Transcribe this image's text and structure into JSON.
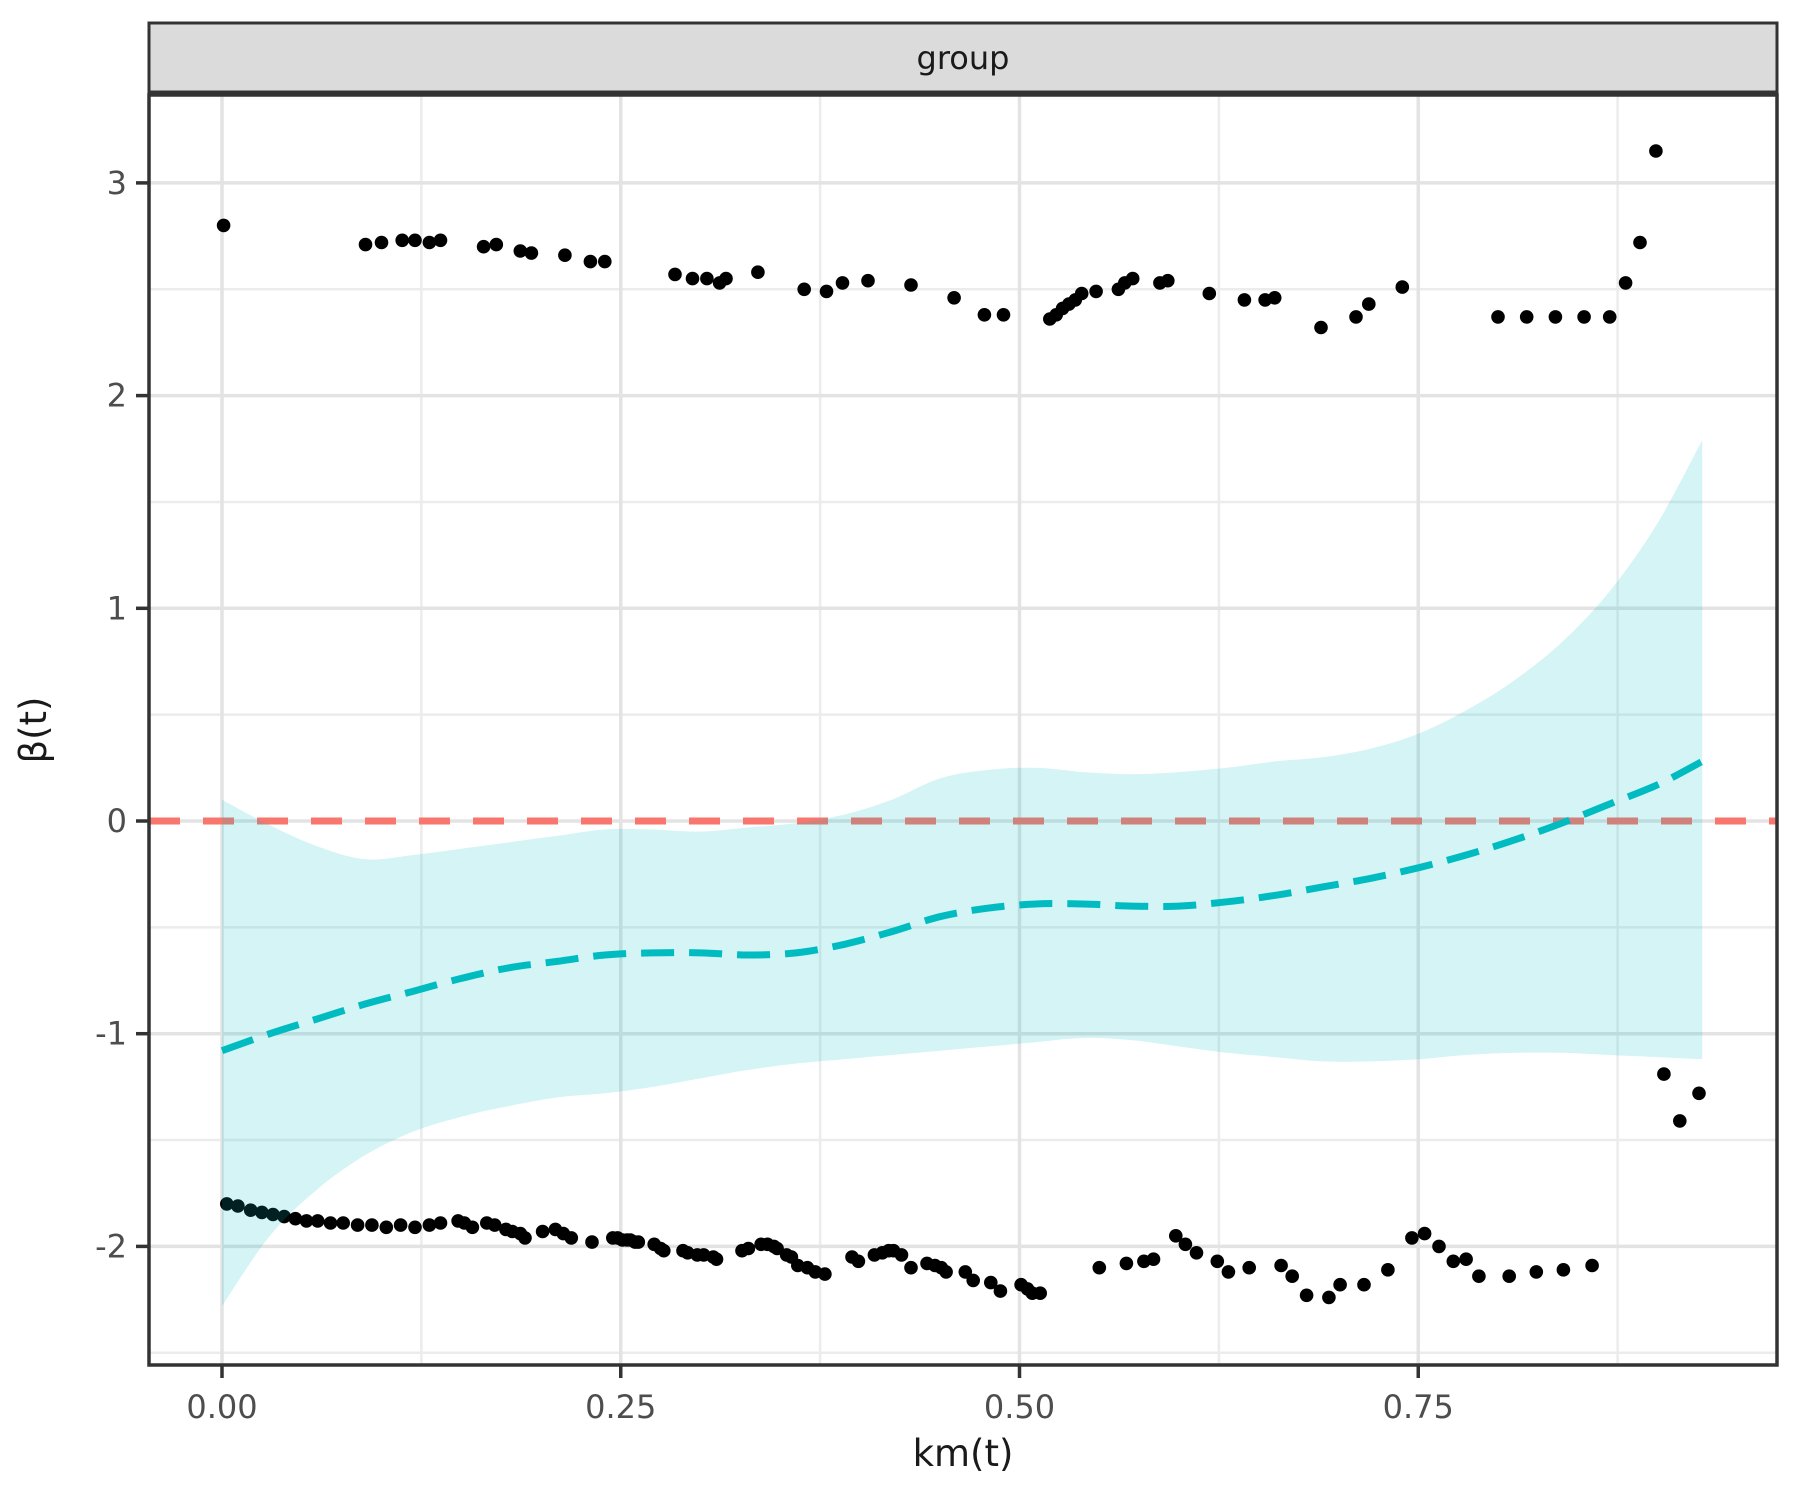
{
  "facet": {
    "label": "group"
  },
  "axes": {
    "x": {
      "title": "km(t)",
      "ticks": [
        {
          "value": 0.0,
          "label": "0.00"
        },
        {
          "value": 0.25,
          "label": "0.25"
        },
        {
          "value": 0.5,
          "label": "0.50"
        },
        {
          "value": 0.75,
          "label": "0.75"
        }
      ],
      "minor_ticks": [
        0.125,
        0.375,
        0.625,
        0.875
      ]
    },
    "y": {
      "title": "β(t)",
      "ticks": [
        {
          "value": 3,
          "label": "3"
        },
        {
          "value": 2,
          "label": "2"
        },
        {
          "value": 1,
          "label": "1"
        },
        {
          "value": 0,
          "label": "0"
        },
        {
          "value": -1,
          "label": "-1"
        },
        {
          "value": -2,
          "label": "-2"
        }
      ],
      "minor_ticks": [
        2.5,
        1.5,
        0.5,
        -0.5,
        -1.5,
        -2.5
      ]
    }
  },
  "colors": {
    "reference_line": "#F8766D",
    "smooth_line": "#00BCC1",
    "ribbon_fill": "rgba(0,188,193,0.17)",
    "point": "#000000",
    "grid_major": "#E3E3E3",
    "grid_minor": "#ECECEC",
    "panel_border": "#333333",
    "strip_fill": "#DBDBDB",
    "tick_text": "#4D4D4D",
    "axis_title_text": "#1A1A1A"
  },
  "chart_data": {
    "type": "scatter",
    "title": "group",
    "xlabel": "km(t)",
    "ylabel": "β(t)",
    "xlim": [
      -0.046,
      0.975
    ],
    "ylim": [
      -2.56,
      3.41
    ],
    "grid": "on",
    "legend": "none",
    "reference_line": {
      "y": 0,
      "style": "dashed"
    },
    "points": [
      [
        0.001,
        2.8
      ],
      [
        0.09,
        2.71
      ],
      [
        0.1,
        2.72
      ],
      [
        0.113,
        2.73
      ],
      [
        0.121,
        2.73
      ],
      [
        0.13,
        2.72
      ],
      [
        0.137,
        2.73
      ],
      [
        0.164,
        2.7
      ],
      [
        0.172,
        2.71
      ],
      [
        0.187,
        2.68
      ],
      [
        0.194,
        2.67
      ],
      [
        0.215,
        2.66
      ],
      [
        0.231,
        2.63
      ],
      [
        0.24,
        2.63
      ],
      [
        0.284,
        2.57
      ],
      [
        0.295,
        2.55
      ],
      [
        0.304,
        2.55
      ],
      [
        0.312,
        2.53
      ],
      [
        0.316,
        2.55
      ],
      [
        0.336,
        2.58
      ],
      [
        0.365,
        2.5
      ],
      [
        0.379,
        2.49
      ],
      [
        0.389,
        2.53
      ],
      [
        0.405,
        2.54
      ],
      [
        0.432,
        2.52
      ],
      [
        0.459,
        2.46
      ],
      [
        0.478,
        2.38
      ],
      [
        0.49,
        2.38
      ],
      [
        0.519,
        2.36
      ],
      [
        0.523,
        2.38
      ],
      [
        0.527,
        2.41
      ],
      [
        0.531,
        2.43
      ],
      [
        0.535,
        2.45
      ],
      [
        0.539,
        2.48
      ],
      [
        0.548,
        2.49
      ],
      [
        0.562,
        2.5
      ],
      [
        0.566,
        2.53
      ],
      [
        0.571,
        2.55
      ],
      [
        0.588,
        2.53
      ],
      [
        0.593,
        2.54
      ],
      [
        0.619,
        2.48
      ],
      [
        0.641,
        2.45
      ],
      [
        0.654,
        2.45
      ],
      [
        0.66,
        2.46
      ],
      [
        0.689,
        2.32
      ],
      [
        0.711,
        2.37
      ],
      [
        0.719,
        2.43
      ],
      [
        0.74,
        2.51
      ],
      [
        0.8,
        2.37
      ],
      [
        0.818,
        2.37
      ],
      [
        0.836,
        2.37
      ],
      [
        0.854,
        2.37
      ],
      [
        0.87,
        2.37
      ],
      [
        0.88,
        2.53
      ],
      [
        0.889,
        2.72
      ],
      [
        0.899,
        3.15
      ],
      [
        0.003,
        -1.8
      ],
      [
        0.01,
        -1.81
      ],
      [
        0.018,
        -1.83
      ],
      [
        0.025,
        -1.84
      ],
      [
        0.032,
        -1.85
      ],
      [
        0.039,
        -1.86
      ],
      [
        0.046,
        -1.87
      ],
      [
        0.053,
        -1.88
      ],
      [
        0.06,
        -1.88
      ],
      [
        0.068,
        -1.89
      ],
      [
        0.076,
        -1.89
      ],
      [
        0.085,
        -1.9
      ],
      [
        0.094,
        -1.9
      ],
      [
        0.103,
        -1.91
      ],
      [
        0.112,
        -1.9
      ],
      [
        0.121,
        -1.91
      ],
      [
        0.13,
        -1.9
      ],
      [
        0.137,
        -1.89
      ],
      [
        0.148,
        -1.88
      ],
      [
        0.152,
        -1.89
      ],
      [
        0.157,
        -1.91
      ],
      [
        0.166,
        -1.89
      ],
      [
        0.171,
        -1.9
      ],
      [
        0.178,
        -1.92
      ],
      [
        0.182,
        -1.93
      ],
      [
        0.187,
        -1.94
      ],
      [
        0.19,
        -1.96
      ],
      [
        0.201,
        -1.93
      ],
      [
        0.209,
        -1.92
      ],
      [
        0.214,
        -1.94
      ],
      [
        0.219,
        -1.96
      ],
      [
        0.232,
        -1.98
      ],
      [
        0.245,
        -1.96
      ],
      [
        0.248,
        -1.96
      ],
      [
        0.251,
        -1.97
      ],
      [
        0.254,
        -1.97
      ],
      [
        0.256,
        -1.97
      ],
      [
        0.259,
        -1.98
      ],
      [
        0.261,
        -1.98
      ],
      [
        0.271,
        -1.99
      ],
      [
        0.275,
        -2.01
      ],
      [
        0.277,
        -2.02
      ],
      [
        0.289,
        -2.02
      ],
      [
        0.292,
        -2.03
      ],
      [
        0.298,
        -2.04
      ],
      [
        0.302,
        -2.04
      ],
      [
        0.308,
        -2.05
      ],
      [
        0.31,
        -2.06
      ],
      [
        0.326,
        -2.02
      ],
      [
        0.33,
        -2.01
      ],
      [
        0.338,
        -1.99
      ],
      [
        0.342,
        -1.99
      ],
      [
        0.346,
        -2.0
      ],
      [
        0.348,
        -2.01
      ],
      [
        0.354,
        -2.04
      ],
      [
        0.357,
        -2.05
      ],
      [
        0.361,
        -2.09
      ],
      [
        0.367,
        -2.1
      ],
      [
        0.372,
        -2.12
      ],
      [
        0.378,
        -2.13
      ],
      [
        0.395,
        -2.05
      ],
      [
        0.399,
        -2.07
      ],
      [
        0.409,
        -2.04
      ],
      [
        0.414,
        -2.03
      ],
      [
        0.418,
        -2.02
      ],
      [
        0.421,
        -2.02
      ],
      [
        0.426,
        -2.04
      ],
      [
        0.432,
        -2.1
      ],
      [
        0.442,
        -2.08
      ],
      [
        0.447,
        -2.09
      ],
      [
        0.451,
        -2.1
      ],
      [
        0.454,
        -2.12
      ],
      [
        0.466,
        -2.12
      ],
      [
        0.471,
        -2.16
      ],
      [
        0.482,
        -2.17
      ],
      [
        0.488,
        -2.21
      ],
      [
        0.501,
        -2.18
      ],
      [
        0.505,
        -2.2
      ],
      [
        0.508,
        -2.22
      ],
      [
        0.513,
        -2.22
      ],
      [
        0.55,
        -2.1
      ],
      [
        0.567,
        -2.08
      ],
      [
        0.578,
        -2.07
      ],
      [
        0.584,
        -2.06
      ],
      [
        0.598,
        -1.95
      ],
      [
        0.604,
        -1.99
      ],
      [
        0.611,
        -2.03
      ],
      [
        0.624,
        -2.07
      ],
      [
        0.631,
        -2.12
      ],
      [
        0.644,
        -2.1
      ],
      [
        0.664,
        -2.09
      ],
      [
        0.671,
        -2.14
      ],
      [
        0.68,
        -2.23
      ],
      [
        0.694,
        -2.24
      ],
      [
        0.701,
        -2.18
      ],
      [
        0.716,
        -2.18
      ],
      [
        0.731,
        -2.11
      ],
      [
        0.746,
        -1.96
      ],
      [
        0.754,
        -1.94
      ],
      [
        0.763,
        -2.0
      ],
      [
        0.772,
        -2.07
      ],
      [
        0.78,
        -2.06
      ],
      [
        0.788,
        -2.14
      ],
      [
        0.807,
        -2.14
      ],
      [
        0.824,
        -2.12
      ],
      [
        0.841,
        -2.11
      ],
      [
        0.859,
        -2.09
      ],
      [
        0.904,
        -1.19
      ],
      [
        0.914,
        -1.41
      ],
      [
        0.926,
        -1.28
      ]
    ],
    "smooth_line": {
      "points": [
        [
          0.0,
          -1.08
        ],
        [
          0.03,
          -1.0
        ],
        [
          0.06,
          -0.93
        ],
        [
          0.09,
          -0.86
        ],
        [
          0.12,
          -0.8
        ],
        [
          0.15,
          -0.74
        ],
        [
          0.18,
          -0.69
        ],
        [
          0.21,
          -0.66
        ],
        [
          0.24,
          -0.63
        ],
        [
          0.27,
          -0.62
        ],
        [
          0.3,
          -0.62
        ],
        [
          0.33,
          -0.63
        ],
        [
          0.36,
          -0.62
        ],
        [
          0.39,
          -0.58
        ],
        [
          0.42,
          -0.52
        ],
        [
          0.45,
          -0.45
        ],
        [
          0.48,
          -0.41
        ],
        [
          0.51,
          -0.39
        ],
        [
          0.54,
          -0.39
        ],
        [
          0.57,
          -0.4
        ],
        [
          0.6,
          -0.4
        ],
        [
          0.63,
          -0.38
        ],
        [
          0.66,
          -0.35
        ],
        [
          0.69,
          -0.31
        ],
        [
          0.72,
          -0.27
        ],
        [
          0.75,
          -0.22
        ],
        [
          0.78,
          -0.16
        ],
        [
          0.81,
          -0.09
        ],
        [
          0.84,
          -0.01
        ],
        [
          0.87,
          0.08
        ],
        [
          0.9,
          0.17
        ],
        [
          0.928,
          0.28
        ]
      ]
    },
    "confidence_band": {
      "upper": [
        [
          0.0,
          0.1
        ],
        [
          0.03,
          -0.02
        ],
        [
          0.06,
          -0.12
        ],
        [
          0.09,
          -0.18
        ],
        [
          0.12,
          -0.16
        ],
        [
          0.15,
          -0.13
        ],
        [
          0.18,
          -0.1
        ],
        [
          0.21,
          -0.07
        ],
        [
          0.24,
          -0.04
        ],
        [
          0.27,
          -0.04
        ],
        [
          0.3,
          -0.05
        ],
        [
          0.33,
          -0.03
        ],
        [
          0.36,
          -0.01
        ],
        [
          0.39,
          0.03
        ],
        [
          0.42,
          0.1
        ],
        [
          0.45,
          0.2
        ],
        [
          0.48,
          0.24
        ],
        [
          0.51,
          0.25
        ],
        [
          0.54,
          0.23
        ],
        [
          0.57,
          0.22
        ],
        [
          0.6,
          0.23
        ],
        [
          0.63,
          0.25
        ],
        [
          0.66,
          0.28
        ],
        [
          0.69,
          0.3
        ],
        [
          0.72,
          0.34
        ],
        [
          0.75,
          0.41
        ],
        [
          0.78,
          0.52
        ],
        [
          0.81,
          0.66
        ],
        [
          0.84,
          0.84
        ],
        [
          0.87,
          1.08
        ],
        [
          0.9,
          1.4
        ],
        [
          0.928,
          1.79
        ]
      ],
      "lower": [
        [
          0.0,
          -2.28
        ],
        [
          0.03,
          -1.95
        ],
        [
          0.06,
          -1.73
        ],
        [
          0.09,
          -1.57
        ],
        [
          0.12,
          -1.46
        ],
        [
          0.15,
          -1.39
        ],
        [
          0.18,
          -1.34
        ],
        [
          0.21,
          -1.3
        ],
        [
          0.24,
          -1.28
        ],
        [
          0.27,
          -1.25
        ],
        [
          0.3,
          -1.21
        ],
        [
          0.33,
          -1.17
        ],
        [
          0.36,
          -1.14
        ],
        [
          0.39,
          -1.12
        ],
        [
          0.42,
          -1.1
        ],
        [
          0.45,
          -1.08
        ],
        [
          0.48,
          -1.06
        ],
        [
          0.51,
          -1.04
        ],
        [
          0.54,
          -1.02
        ],
        [
          0.57,
          -1.03
        ],
        [
          0.6,
          -1.06
        ],
        [
          0.63,
          -1.09
        ],
        [
          0.66,
          -1.11
        ],
        [
          0.69,
          -1.13
        ],
        [
          0.72,
          -1.13
        ],
        [
          0.75,
          -1.12
        ],
        [
          0.78,
          -1.1
        ],
        [
          0.81,
          -1.09
        ],
        [
          0.84,
          -1.09
        ],
        [
          0.87,
          -1.1
        ],
        [
          0.9,
          -1.11
        ],
        [
          0.928,
          -1.12
        ]
      ]
    }
  }
}
